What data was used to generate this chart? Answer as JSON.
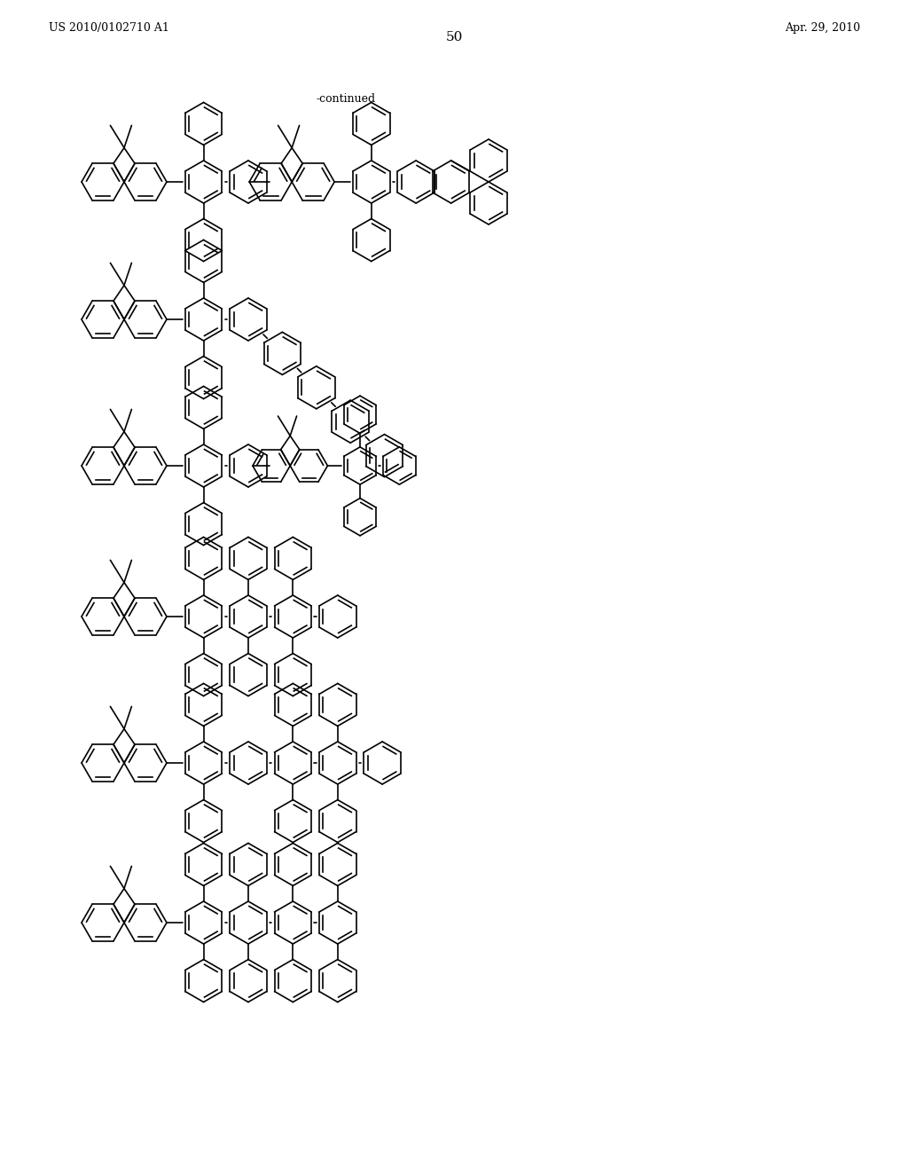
{
  "patent_number": "US 2010/0102710 A1",
  "patent_date": "Apr. 29, 2010",
  "page_number": "50",
  "continued_label": "-continued",
  "bg_color": "#ffffff",
  "line_color": "#000000",
  "lw": 1.2
}
